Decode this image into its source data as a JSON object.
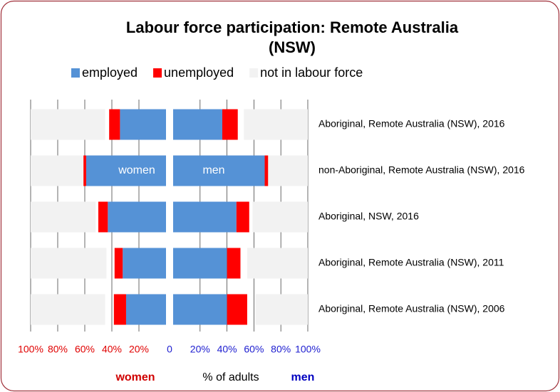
{
  "chart_data": {
    "type": "butterfly-stacked-bar",
    "title": [
      "Labour force participation: Remote Australia",
      "(NSW)"
    ],
    "categories": [
      "Aboriginal, Remote Australia (NSW), 2016",
      "non-Aboriginal, Remote Australia (NSW), 2016",
      "Aboriginal, NSW, 2016",
      "Aboriginal, Remote Australia (NSW), 2011",
      "Aboriginal, Remote Australia (NSW), 2006"
    ],
    "series": [
      {
        "name": "employed",
        "color": "#5592d6",
        "women": [
          34,
          59,
          43,
          32,
          29.5
        ],
        "men": [
          36.5,
          68,
          47,
          40,
          40
        ]
      },
      {
        "name": "unemployed",
        "color": "#ff0000",
        "women": [
          8,
          2,
          7,
          6,
          9
        ],
        "men": [
          11.5,
          3,
          9.5,
          10,
          15
        ]
      },
      {
        "name": "not in labour force",
        "color": "#f2f2f2",
        "women": [
          55,
          39,
          48,
          56,
          55
        ],
        "men": [
          47.5,
          29.5,
          41,
          45,
          39
        ]
      }
    ],
    "xlim": [
      0,
      100
    ],
    "women_xticks": [
      {
        "value": 100,
        "label": "100%"
      },
      {
        "value": 80,
        "label": "80%"
      },
      {
        "value": 60,
        "label": "60%"
      },
      {
        "value": 40,
        "label": "40%"
      },
      {
        "value": 20,
        "label": "20%"
      },
      0
    ],
    "men_xticks": [
      {
        "value": 20,
        "label": "20%"
      },
      {
        "value": 40,
        "label": "40%"
      },
      {
        "value": 60,
        "label": "60%"
      },
      {
        "value": 80,
        "label": "80%"
      },
      {
        "value": 100,
        "label": "100%"
      }
    ],
    "annotations": [
      "women",
      "men"
    ],
    "xlabel_women": "women",
    "xlabel": "% of adults",
    "xlabel_men": "men"
  }
}
